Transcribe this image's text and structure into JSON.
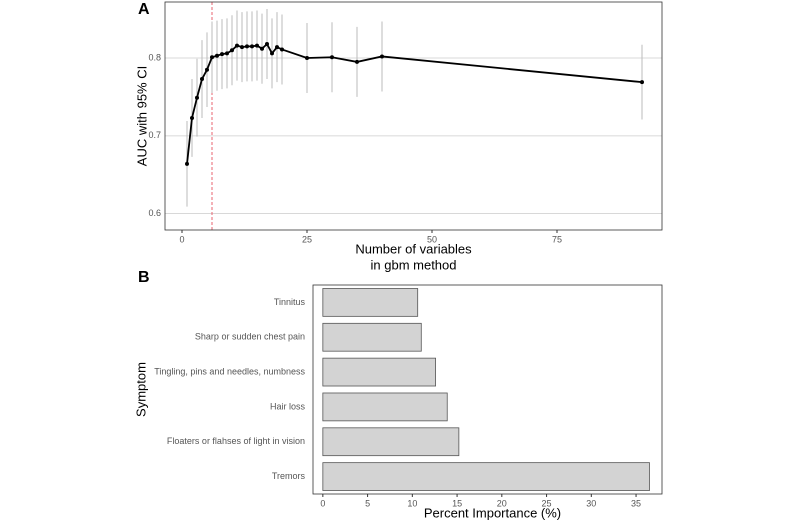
{
  "chart_data": [
    {
      "type": "line",
      "label": "A",
      "x": [
        1,
        2,
        3,
        4,
        5,
        6,
        7,
        8,
        9,
        10,
        11,
        12,
        13,
        14,
        15,
        16,
        17,
        18,
        19,
        20,
        25,
        30,
        35,
        40,
        92
      ],
      "values": [
        0.664,
        0.723,
        0.749,
        0.773,
        0.785,
        0.801,
        0.803,
        0.805,
        0.806,
        0.81,
        0.816,
        0.814,
        0.815,
        0.815,
        0.816,
        0.812,
        0.818,
        0.806,
        0.814,
        0.811,
        0.8,
        0.801,
        0.795,
        0.802,
        0.769
      ],
      "errors": [
        0.055,
        0.05,
        0.05,
        0.05,
        0.048,
        0.046,
        0.045,
        0.045,
        0.045,
        0.045,
        0.045,
        0.045,
        0.045,
        0.045,
        0.045,
        0.045,
        0.045,
        0.045,
        0.045,
        0.045,
        0.045,
        0.045,
        0.045,
        0.045,
        0.048
      ],
      "color": "#000000",
      "error_color": "#bbbbbb",
      "reference_line": {
        "x": 6,
        "color": "#e8636f"
      },
      "xlabel": [
        "Number of variables",
        "in gbm method"
      ],
      "ylabel": "AUC with 95% CI",
      "xlim": [
        -3.4,
        96
      ],
      "ylim": [
        0.579,
        0.872
      ],
      "xticks": [
        0,
        25,
        50,
        75
      ],
      "yticks": [
        0.6,
        0.7,
        0.8
      ],
      "grid": true
    },
    {
      "type": "barh",
      "label": "B",
      "categories": [
        "Tinnitus",
        "Sharp or sudden chest pain",
        "Tingling, pins and needles, numbness",
        "Hair loss",
        "Floaters or flahses of light in vision",
        "Tremors"
      ],
      "values": [
        10.6,
        11.0,
        12.6,
        13.9,
        15.2,
        36.5
      ],
      "color": "#d3d3d3",
      "edge_color": "#555555",
      "xlabel": [
        "Percent Importance (%)"
      ],
      "ylabel": "Symptom",
      "xlim": [
        -1.1,
        37.9
      ],
      "xticks": [
        0,
        5,
        10,
        15,
        20,
        25,
        30,
        35
      ],
      "grid": false
    }
  ]
}
